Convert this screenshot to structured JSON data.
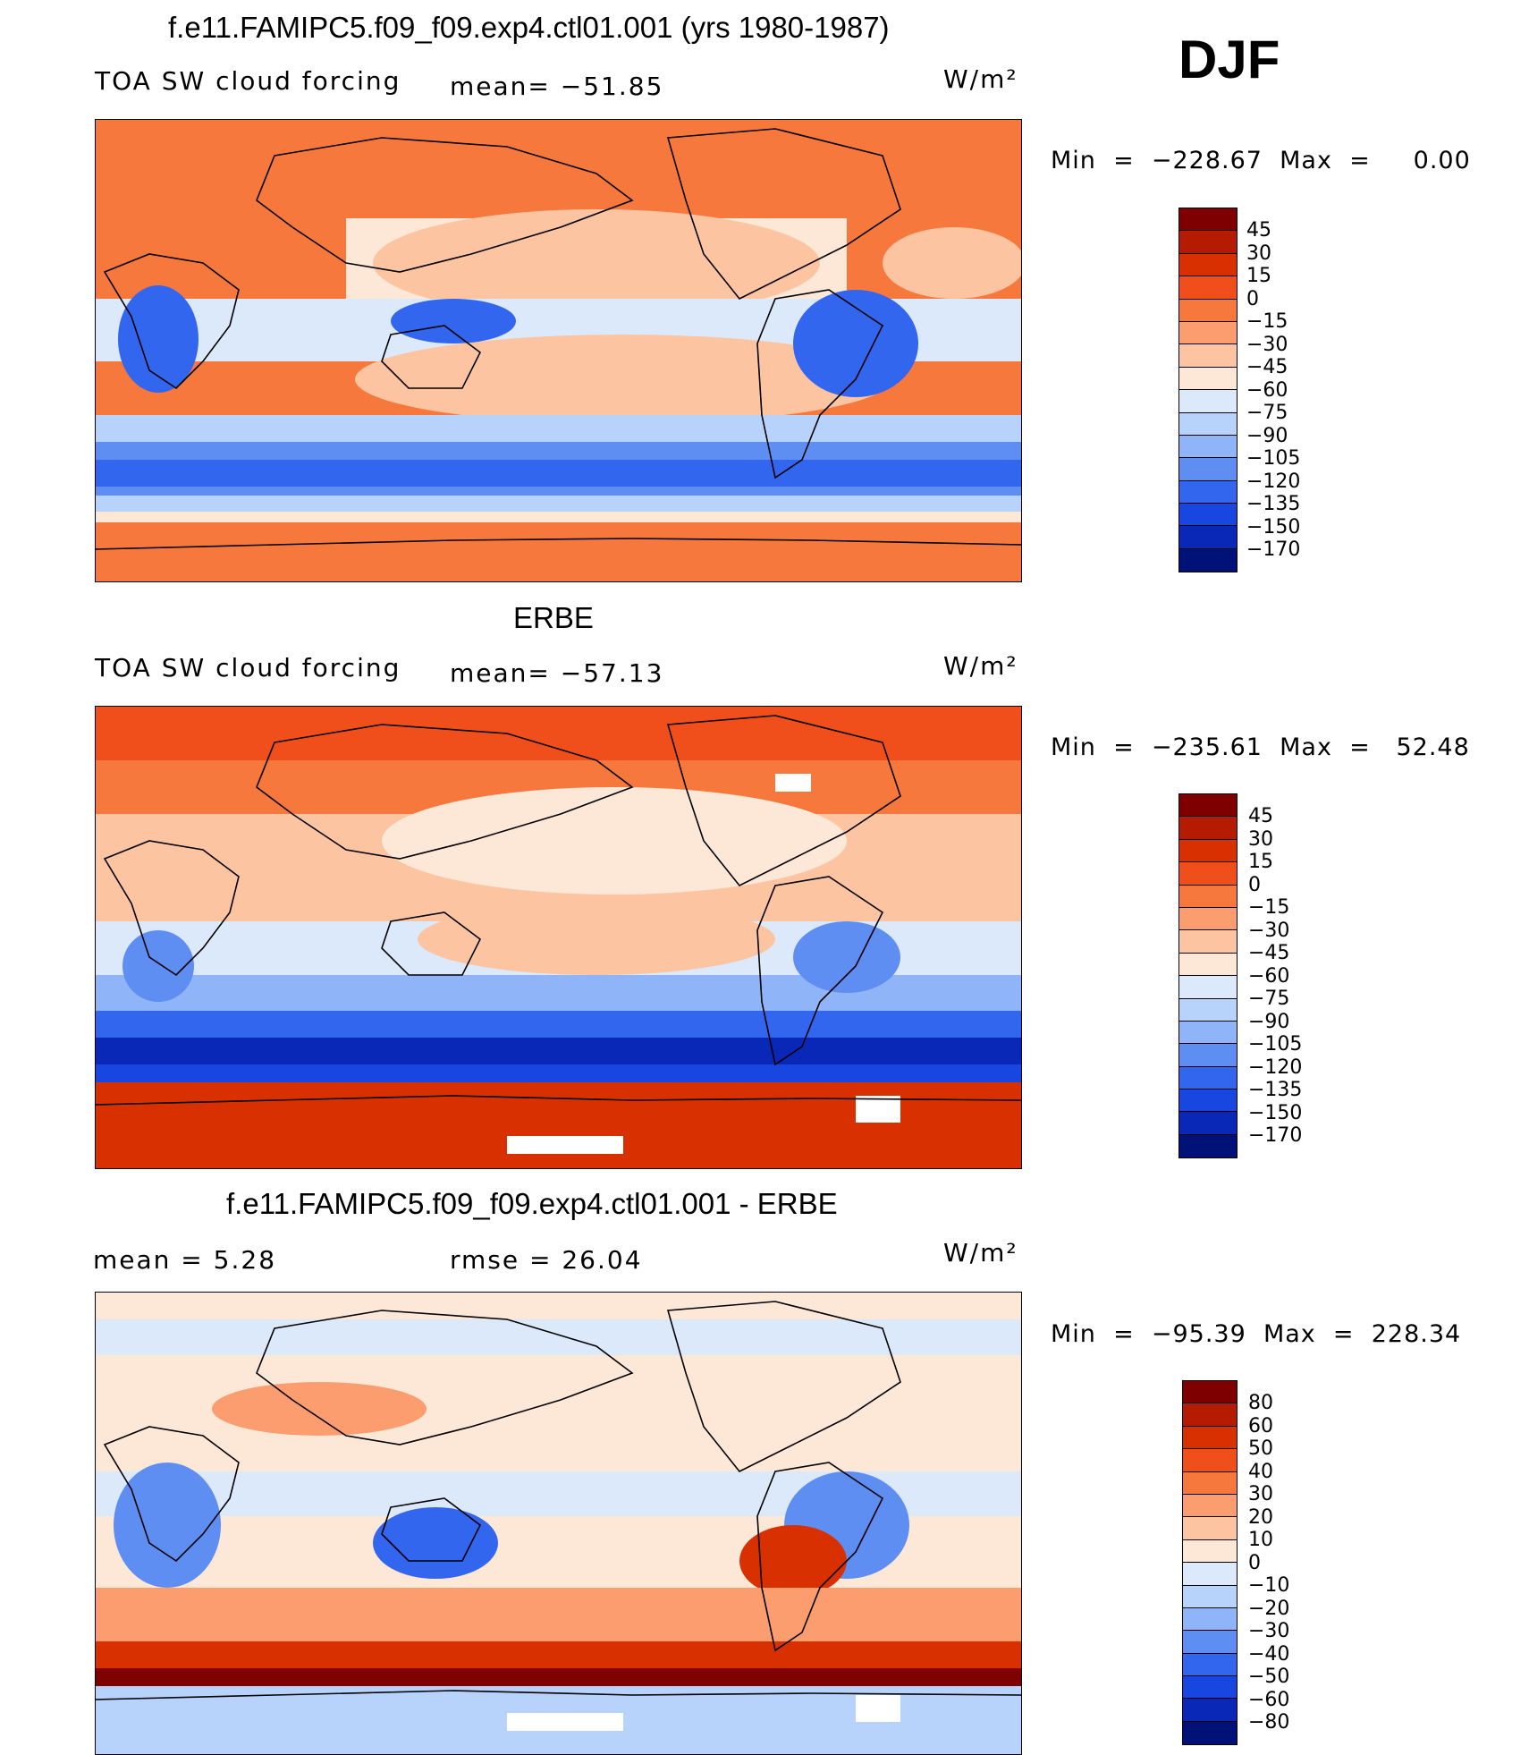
{
  "season": "DJF",
  "panels": [
    {
      "title": "f.e11.FAMIPC5.f09_f09.exp4.ctl01.001 (yrs 1980-1987)",
      "variable": "TOA SW cloud forcing",
      "stat": "mean=  −51.85",
      "units": "W/m²",
      "minmax": "Min  =  −228.67  Max  =     0.00",
      "colorbar_labels": [
        "45",
        "30",
        "15",
        "0",
        "−15",
        "−30",
        "−45",
        "−60",
        "−75",
        "−90",
        "−105",
        "−120",
        "−135",
        "−150",
        "−170"
      ]
    },
    {
      "title": "ERBE",
      "variable": "TOA SW cloud forcing",
      "stat": "mean=  −57.13",
      "units": "W/m²",
      "minmax": "Min  =  −235.61  Max  =   52.48",
      "colorbar_labels": [
        "45",
        "30",
        "15",
        "0",
        "−15",
        "−30",
        "−45",
        "−60",
        "−75",
        "−90",
        "−105",
        "−120",
        "−135",
        "−150",
        "−170"
      ]
    },
    {
      "title": "f.e11.FAMIPC5.f09_f09.exp4.ctl01.001 - ERBE",
      "stat_mean": "mean  =      5.28",
      "stat_rmse": "rmse  =     26.04",
      "units": "W/m²",
      "minmax": "Min  =  −95.39  Max  =  228.34",
      "colorbar_labels": [
        "80",
        "60",
        "50",
        "40",
        "30",
        "20",
        "10",
        "0",
        "−10",
        "−20",
        "−30",
        "−40",
        "−50",
        "−60",
        "−80"
      ]
    }
  ],
  "colors": {
    "colorbar_top_to_bottom": [
      "#7f0000",
      "#b51b00",
      "#d83000",
      "#f04e1a",
      "#f7783c",
      "#fb9d6f",
      "#fdc4a2",
      "#fde7d6",
      "#dbe9fb",
      "#b8d3fb",
      "#8fb5f8",
      "#5f8ef2",
      "#3366ee",
      "#1846e0",
      "#0a28b8",
      "#001277"
    ],
    "land_line": "#000000"
  }
}
